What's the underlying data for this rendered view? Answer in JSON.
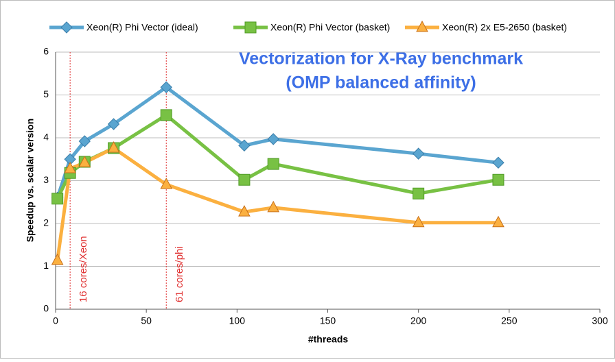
{
  "chart_data": {
    "type": "line",
    "title_lines": [
      "Vectorization for X-Ray benchmark",
      "(OMP balanced affinity)"
    ],
    "xlabel": "#threads",
    "ylabel": "Speedup vs. scalar version",
    "x": [
      1,
      8,
      16,
      32,
      61,
      104,
      120,
      200,
      244
    ],
    "series": [
      {
        "name": "Xeon(R) Phi Vector (ideal)",
        "color": "#5aa5d0",
        "marker": "diamond",
        "values": [
          2.6,
          3.5,
          3.92,
          4.32,
          5.18,
          3.82,
          3.97,
          3.63,
          3.42
        ]
      },
      {
        "name": "Xeon(R) Phi Vector (basket)",
        "color": "#78c144",
        "marker": "square",
        "values": [
          2.58,
          3.18,
          3.44,
          3.76,
          4.53,
          3.02,
          3.39,
          2.7,
          3.02
        ]
      },
      {
        "name": "Xeon(R) 2x E5-2650 (basket)",
        "color": "#fbb040",
        "marker": "triangle",
        "values": [
          1.14,
          3.28,
          3.42,
          3.76,
          2.91,
          2.27,
          2.37,
          2.02,
          2.02
        ]
      }
    ],
    "vlines": [
      {
        "x": 8,
        "label": "16 cores/Xeon"
      },
      {
        "x": 61,
        "label": "61 cores/phi"
      }
    ],
    "xlim": [
      0,
      300
    ],
    "xticks": [
      0,
      50,
      100,
      150,
      200,
      250,
      300
    ],
    "ylim": [
      0,
      6
    ],
    "yticks": [
      0,
      1,
      2,
      3,
      4,
      5,
      6
    ],
    "grid": true,
    "legend": "top"
  }
}
